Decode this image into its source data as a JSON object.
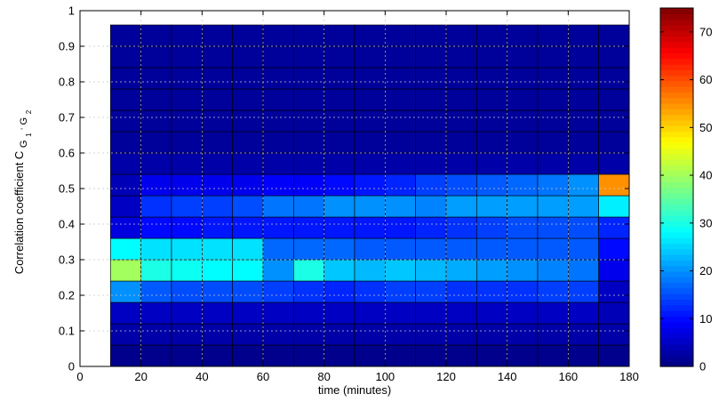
{
  "chart_data": {
    "type": "heatmap",
    "title": "",
    "xlabel": "time (minutes)",
    "ylabel": {
      "text": "Correlation coefficient C",
      "subscript": "G",
      "sub_parts": [
        "1",
        "2"
      ],
      "prime": "'"
    },
    "xlim": [
      0,
      180
    ],
    "ylim": [
      0,
      1
    ],
    "x_ticks": [
      "0",
      "20",
      "40",
      "60",
      "80",
      "100",
      "120",
      "140",
      "160",
      "180"
    ],
    "y_ticks": [
      "0",
      "0.1",
      "0.2",
      "0.3",
      "0.4",
      "0.5",
      "0.6",
      "0.7",
      "0.8",
      "0.9",
      "1"
    ],
    "grid": true,
    "x_bin_edges": [
      10,
      20,
      30,
      40,
      50,
      60,
      70,
      80,
      90,
      100,
      110,
      120,
      130,
      140,
      150,
      160,
      170,
      180
    ],
    "y_bin_edges": [
      0.0,
      0.06,
      0.12,
      0.18,
      0.24,
      0.3,
      0.36,
      0.42,
      0.48,
      0.54,
      0.6,
      0.66,
      0.72,
      0.78,
      0.84,
      0.9,
      0.96
    ],
    "values": [
      [
        1,
        1,
        1,
        1,
        1,
        1,
        1,
        1,
        1,
        1,
        1,
        1,
        1,
        1,
        1,
        1,
        1
      ],
      [
        3,
        3,
        3,
        3,
        3,
        3,
        3,
        3,
        3,
        3,
        3,
        3,
        3,
        3,
        3,
        3,
        3
      ],
      [
        5,
        5,
        5,
        5,
        5,
        5,
        5,
        5,
        5,
        5,
        5,
        5,
        5,
        5,
        5,
        5,
        4
      ],
      [
        20,
        16,
        15,
        15,
        15,
        14,
        13,
        12,
        13,
        14,
        14,
        13,
        13,
        13,
        14,
        14,
        5
      ],
      [
        40,
        30,
        29,
        28,
        28,
        20,
        30,
        24,
        23,
        24,
        23,
        22,
        21,
        20,
        19,
        18,
        8
      ],
      [
        28,
        26,
        26,
        26,
        26,
        17,
        17,
        17,
        16,
        16,
        16,
        16,
        16,
        16,
        16,
        16,
        10
      ],
      [
        7,
        10,
        10,
        11,
        11,
        11,
        11,
        11,
        11,
        11,
        12,
        13,
        14,
        15,
        15,
        15,
        12
      ],
      [
        5,
        13,
        14,
        14,
        15,
        18,
        18,
        20,
        20,
        20,
        19,
        21,
        21,
        21,
        21,
        21,
        27
      ],
      [
        4,
        8,
        8,
        8,
        8,
        9,
        9,
        10,
        11,
        12,
        14,
        15,
        16,
        17,
        18,
        20,
        55
      ],
      [
        3,
        3,
        3,
        3,
        3,
        3,
        3,
        3,
        3,
        3,
        3,
        3,
        3,
        3,
        3,
        3,
        3
      ],
      [
        2,
        2,
        2,
        2,
        2,
        2,
        2,
        2,
        2,
        2,
        2,
        2,
        2,
        2,
        2,
        2,
        2
      ],
      [
        2,
        2,
        2,
        2,
        2,
        2,
        2,
        2,
        2,
        2,
        2,
        2,
        2,
        2,
        2,
        2,
        2
      ],
      [
        2,
        2,
        2,
        2,
        2,
        2,
        2,
        2,
        2,
        2,
        2,
        2,
        2,
        2,
        2,
        2,
        2
      ],
      [
        2,
        2,
        2,
        2,
        2,
        2,
        2,
        2,
        2,
        2,
        2,
        2,
        2,
        2,
        2,
        2,
        2
      ],
      [
        2,
        2,
        2,
        2,
        2,
        2,
        2,
        2,
        2,
        2,
        2,
        2,
        2,
        2,
        2,
        2,
        2
      ],
      [
        2,
        2,
        2,
        2,
        2,
        2,
        2,
        2,
        2,
        2,
        2,
        2,
        2,
        2,
        2,
        2,
        2
      ]
    ],
    "colorbar": {
      "colormap": "jet",
      "range": [
        0,
        75
      ],
      "ticks": [
        "0",
        "10",
        "20",
        "30",
        "40",
        "50",
        "60",
        "70"
      ]
    }
  }
}
